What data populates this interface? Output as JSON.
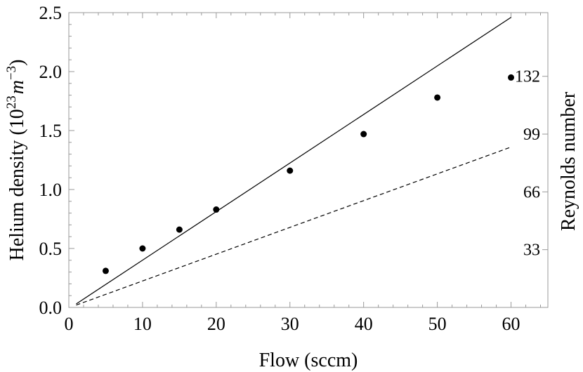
{
  "chart_data": {
    "type": "scatter",
    "xlabel": "Flow (sccm)",
    "ylabel_main": "Helium density (10",
    "ylabel_exp1": "23",
    "ylabel_unit": "m",
    "ylabel_exp2": "−3",
    "ylabel_close": ")",
    "y2label": "Reynolds number",
    "xlim": [
      0,
      65
    ],
    "ylim": [
      0,
      2.5
    ],
    "x_ticks": [
      0,
      10,
      20,
      30,
      40,
      50,
      60
    ],
    "x_tick_labels": [
      "0",
      "10",
      "20",
      "30",
      "40",
      "50",
      "60"
    ],
    "y_ticks": [
      0,
      0.5,
      1.0,
      1.5,
      2.0,
      2.5
    ],
    "y_tick_labels": [
      "0.0",
      "0.5",
      "1.0",
      "1.5",
      "2.0",
      "2.5"
    ],
    "reynolds_ticks": [
      {
        "label": "33",
        "y": 0.49
      },
      {
        "label": "66",
        "y": 0.98
      },
      {
        "label": "99",
        "y": 1.47
      },
      {
        "label": "132",
        "y": 1.96
      }
    ],
    "points": [
      {
        "x": 5,
        "y": 0.31
      },
      {
        "x": 10,
        "y": 0.5
      },
      {
        "x": 15,
        "y": 0.66
      },
      {
        "x": 20,
        "y": 0.83
      },
      {
        "x": 30,
        "y": 1.16
      },
      {
        "x": 40,
        "y": 1.47
      },
      {
        "x": 50,
        "y": 1.78
      },
      {
        "x": 60,
        "y": 1.95
      }
    ],
    "lines": [
      {
        "style": "solid",
        "x": [
          1,
          60
        ],
        "y": [
          0.03,
          2.46
        ]
      },
      {
        "style": "dashed",
        "x": [
          1,
          60
        ],
        "y": [
          0.02,
          1.36
        ]
      }
    ]
  }
}
